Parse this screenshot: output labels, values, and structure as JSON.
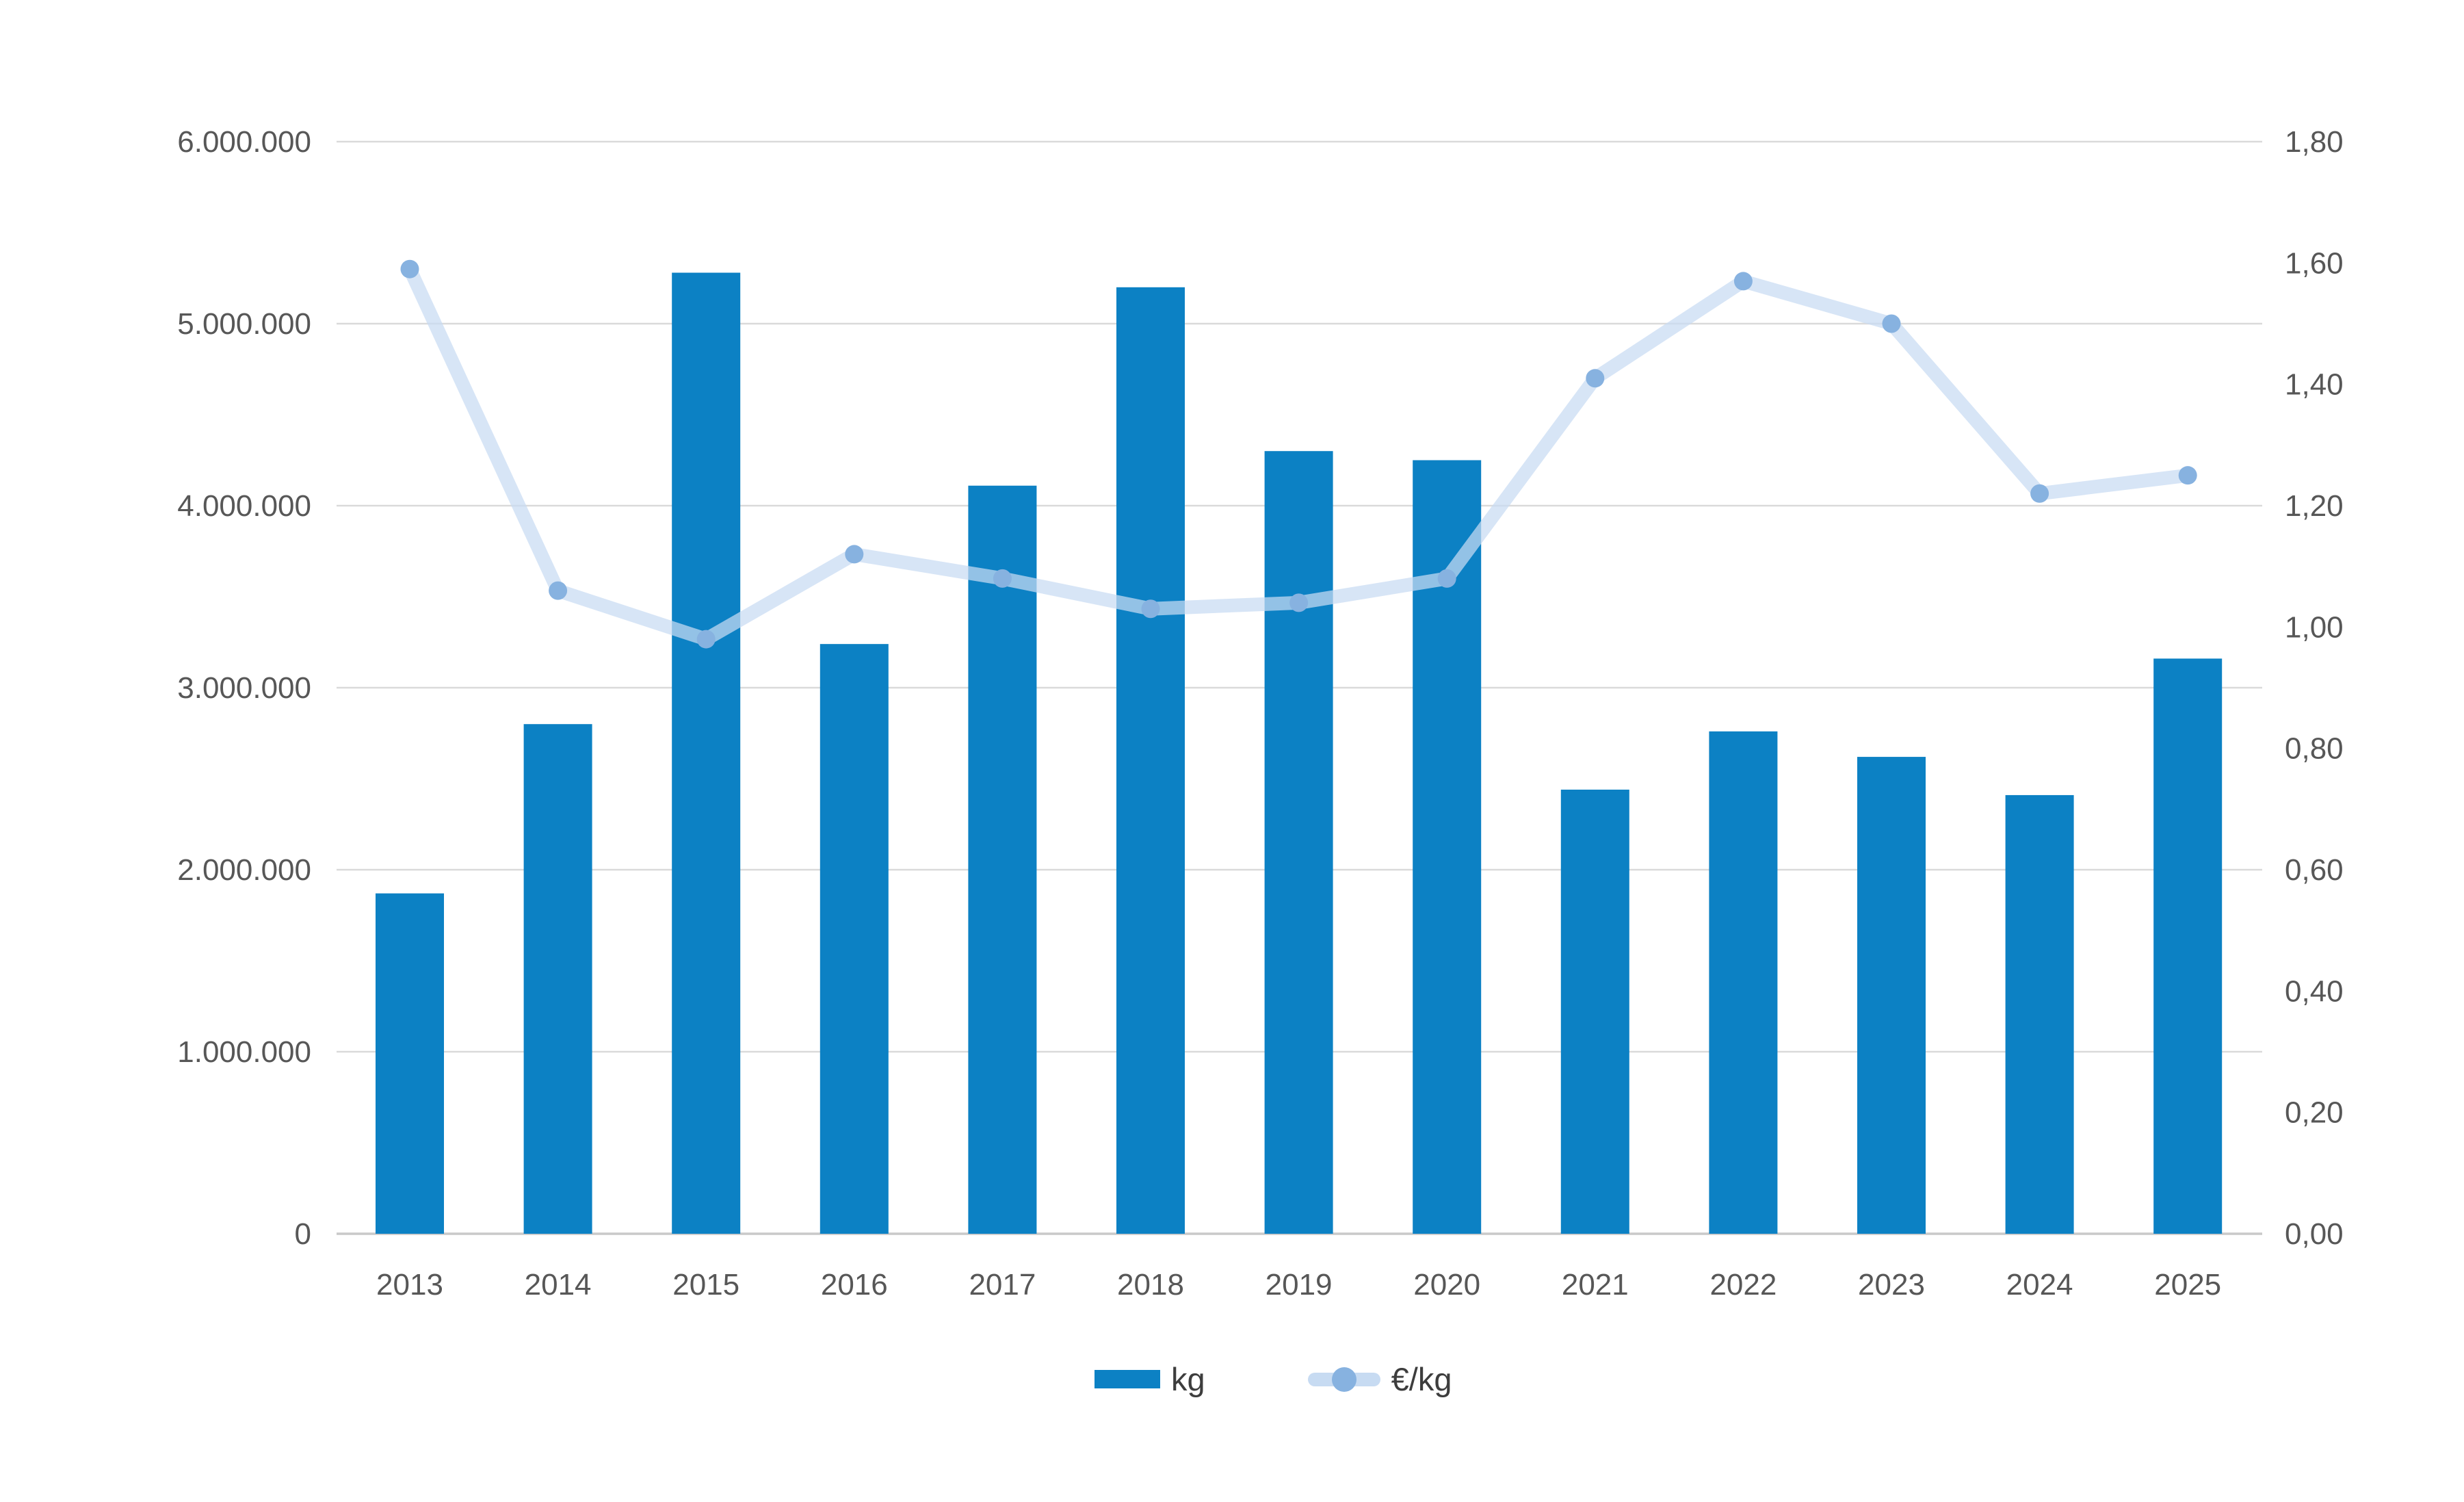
{
  "chart_data": {
    "type": "bar",
    "subtype": "bar-line-combo",
    "title": "",
    "categories": [
      "2013",
      "2014",
      "2015",
      "2016",
      "2017",
      "2018",
      "2019",
      "2020",
      "2021",
      "2022",
      "2023",
      "2024",
      "2025"
    ],
    "series": [
      {
        "name": "kg",
        "type": "bar",
        "y_axis": "left",
        "values": [
          1870000,
          2800000,
          5280000,
          3240000,
          4110000,
          5200000,
          4300000,
          4250000,
          2440000,
          2760000,
          2620000,
          2410000,
          3160000
        ]
      },
      {
        "name": "€/kg",
        "type": "line",
        "y_axis": "right",
        "values": [
          1.59,
          1.06,
          0.98,
          1.12,
          1.08,
          1.03,
          1.04,
          1.08,
          1.41,
          1.57,
          1.5,
          1.22,
          1.25
        ]
      }
    ],
    "axes": {
      "left": {
        "min": 0,
        "max": 6000000,
        "step": 1000000,
        "labels": [
          "0",
          "1.000.000",
          "2.000.000",
          "3.000.000",
          "4.000.000",
          "5.000.000",
          "6.000.000"
        ]
      },
      "right": {
        "min": 0,
        "max": 1.8,
        "step": 0.2,
        "labels": [
          "0,00",
          "0,20",
          "0,40",
          "0,60",
          "0,80",
          "1,00",
          "1,20",
          "1,40",
          "1,60",
          "1,80"
        ]
      }
    },
    "grid": true,
    "legend_position": "bottom"
  },
  "colors": {
    "bar": "#0c81c4",
    "line": "#c7dbf2",
    "marker": "#87b2e0",
    "gridline": "#dadada",
    "baseline": "#c9c9c9",
    "axis_text": "#575757",
    "legend_text": "#3d3d3d",
    "background": "#ffffff"
  }
}
